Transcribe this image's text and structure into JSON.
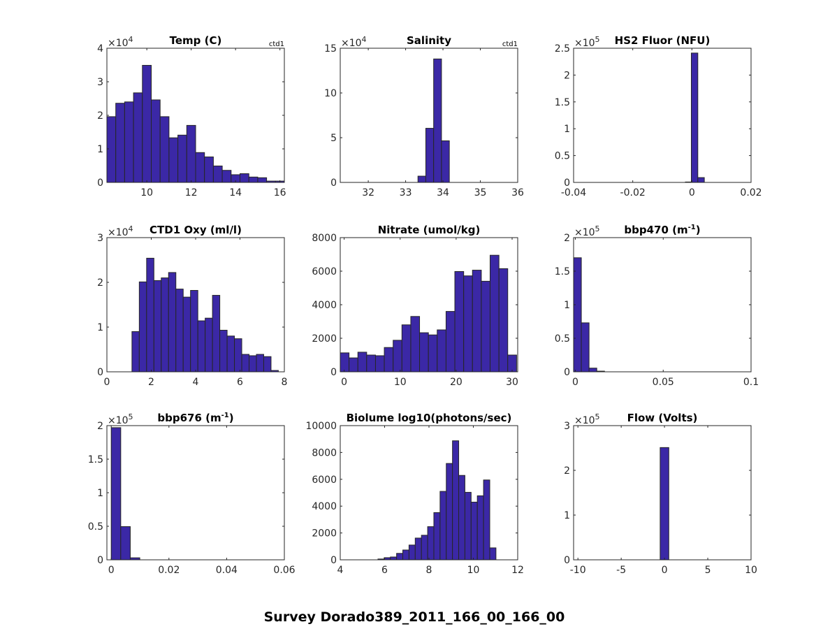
{
  "figure": {
    "suptitle": "Survey Dorado389_2011_166_00_166_00",
    "bar_color": "#3b28a6",
    "edge_color": "#262626"
  },
  "chart_data": [
    {
      "type": "bar",
      "title": "Temp (C)",
      "corner_label": "ctd1",
      "exponent_label": "×10",
      "exponent": "4",
      "xlim": [
        8.2,
        16.2
      ],
      "ylim": [
        0,
        40000
      ],
      "xticks": [
        10,
        12,
        14,
        16
      ],
      "xtick_labels": [
        "10",
        "12",
        "14",
        "16"
      ],
      "yticks": [
        0,
        10000,
        20000,
        30000,
        40000
      ],
      "ytick_labels": [
        "0",
        "1",
        "2",
        "3",
        "4"
      ],
      "bin_edges": [
        8.2,
        8.6,
        9.0,
        9.4,
        9.8,
        10.2,
        10.6,
        11.0,
        11.4,
        11.8,
        12.2,
        12.6,
        13.0,
        13.4,
        13.8,
        14.2,
        14.6,
        15.0,
        15.4,
        15.8,
        16.2
      ],
      "values": [
        19600,
        23600,
        24000,
        26700,
        34900,
        24600,
        19600,
        13300,
        14100,
        17000,
        8900,
        7600,
        4900,
        3600,
        2300,
        2600,
        1600,
        1400,
        400,
        400
      ]
    },
    {
      "type": "bar",
      "title": "Salinity",
      "corner_label": "ctd1",
      "exponent_label": "×10",
      "exponent": "4",
      "xlim": [
        31.25,
        36
      ],
      "ylim": [
        0,
        150000
      ],
      "xticks": [
        32,
        33,
        34,
        35,
        36
      ],
      "xtick_labels": [
        "32",
        "33",
        "34",
        "35",
        "36"
      ],
      "yticks": [
        0,
        50000,
        100000,
        150000
      ],
      "ytick_labels": [
        "0",
        "5",
        "10",
        "15"
      ],
      "bin_edges": [
        33.33,
        33.54,
        33.75,
        33.96,
        34.17
      ],
      "values": [
        7000,
        60500,
        138000,
        46500
      ]
    },
    {
      "type": "bar",
      "title": "HS2 Fluor (NFU)",
      "exponent_label": "×10",
      "exponent": "5",
      "xlim": [
        -0.04,
        0.02
      ],
      "ylim": [
        0,
        250000
      ],
      "xticks": [
        -0.04,
        -0.02,
        0,
        0.02
      ],
      "xtick_labels": [
        "-0.04",
        "-0.02",
        "0",
        "0.02"
      ],
      "yticks": [
        0,
        50000,
        100000,
        150000,
        200000,
        250000
      ],
      "ytick_labels": [
        "0",
        "0.5",
        "1",
        "1.5",
        "2",
        "2.5"
      ],
      "bin_edges": [
        -0.0022,
        -0.0002,
        0.002,
        0.0042
      ],
      "values": [
        800,
        241000,
        9000
      ]
    },
    {
      "type": "bar",
      "title": "CTD1 Oxy (ml/l)",
      "exponent_label": "×10",
      "exponent": "4",
      "xlim": [
        0,
        8
      ],
      "ylim": [
        0,
        30000
      ],
      "xticks": [
        0,
        2,
        4,
        6,
        8
      ],
      "xtick_labels": [
        "0",
        "2",
        "4",
        "6",
        "8"
      ],
      "yticks": [
        0,
        10000,
        20000,
        30000
      ],
      "ytick_labels": [
        "0",
        "1",
        "2",
        "3"
      ],
      "bin_edges": [
        1.13,
        1.46,
        1.79,
        2.12,
        2.45,
        2.78,
        3.11,
        3.44,
        3.77,
        4.1,
        4.43,
        4.76,
        5.09,
        5.42,
        5.75,
        6.08,
        6.41,
        6.74,
        7.07,
        7.4,
        7.73
      ],
      "values": [
        9000,
        20100,
        25400,
        20400,
        21000,
        22200,
        18500,
        16700,
        18200,
        11400,
        12000,
        17100,
        9300,
        8000,
        7400,
        3900,
        3600,
        3900,
        3400,
        300
      ]
    },
    {
      "type": "bar",
      "title": "Nitrate (umol/kg)",
      "xlim": [
        -0.7,
        31
      ],
      "ylim": [
        0,
        8000
      ],
      "xticks": [
        0,
        10,
        20,
        30
      ],
      "xtick_labels": [
        "0",
        "10",
        "20",
        "30"
      ],
      "yticks": [
        0,
        2000,
        4000,
        6000,
        8000
      ],
      "ytick_labels": [
        "0",
        "2000",
        "4000",
        "6000",
        "8000"
      ],
      "bin_edges": [
        -0.7,
        0.87,
        2.45,
        4.02,
        5.6,
        7.17,
        8.75,
        10.32,
        11.9,
        13.47,
        15.05,
        16.62,
        18.2,
        19.77,
        21.35,
        22.92,
        24.5,
        26.07,
        27.65,
        29.22,
        30.8
      ],
      "values": [
        1130,
        830,
        1170,
        1000,
        960,
        1450,
        1880,
        2800,
        3300,
        2330,
        2200,
        2500,
        3600,
        5980,
        5720,
        6060,
        5400,
        6950,
        6150,
        1000
      ]
    },
    {
      "type": "bar",
      "title": "bbp470 (m",
      "title_sup": "-1",
      "title_end": ")",
      "exponent_label": "×10",
      "exponent": "5",
      "xlim": [
        -0.001,
        0.1
      ],
      "ylim": [
        0,
        200000
      ],
      "xticks": [
        0,
        0.05,
        0.1
      ],
      "xtick_labels": [
        "0",
        "0.05",
        "0.1"
      ],
      "yticks": [
        0,
        50000,
        100000,
        150000,
        200000
      ],
      "ytick_labels": [
        "0",
        "0.5",
        "1",
        "1.5",
        "2"
      ],
      "bin_edges": [
        -0.001,
        0.0034,
        0.0078,
        0.0122,
        0.0166
      ],
      "values": [
        170000,
        73000,
        5500,
        1000
      ]
    },
    {
      "type": "bar",
      "title": "bbp676 (m",
      "title_sup": "-1",
      "title_end": ")",
      "exponent_label": "×10",
      "exponent": "5",
      "xlim": [
        -0.0015,
        0.06
      ],
      "ylim": [
        0,
        200000
      ],
      "xticks": [
        0,
        0.02,
        0.04,
        0.06
      ],
      "xtick_labels": [
        "0",
        "0.02",
        "0.04",
        "0.06"
      ],
      "yticks": [
        0,
        50000,
        100000,
        150000,
        200000
      ],
      "ytick_labels": [
        "0",
        "0.5",
        "1",
        "1.5",
        "2"
      ],
      "bin_edges": [
        0.0,
        0.0033,
        0.0066,
        0.0099
      ],
      "values": [
        197000,
        49500,
        3000
      ]
    },
    {
      "type": "bar",
      "title": "Biolume log10(photons/sec)",
      "xlim": [
        4,
        12
      ],
      "ylim": [
        0,
        10000
      ],
      "xticks": [
        4,
        6,
        8,
        10,
        12
      ],
      "xtick_labels": [
        "4",
        "6",
        "8",
        "10",
        "12"
      ],
      "yticks": [
        0,
        2000,
        4000,
        6000,
        8000,
        10000
      ],
      "ytick_labels": [
        "0",
        "2000",
        "4000",
        "6000",
        "8000",
        "10000"
      ],
      "bin_edges": [
        5.7,
        5.98,
        6.26,
        6.54,
        6.82,
        7.1,
        7.38,
        7.66,
        7.94,
        8.22,
        8.5,
        8.78,
        9.06,
        9.34,
        9.62,
        9.9,
        10.18,
        10.46,
        10.74,
        11.02
      ],
      "values": [
        60,
        160,
        210,
        480,
        730,
        1100,
        1620,
        1830,
        2470,
        3520,
        5100,
        7180,
        8870,
        6290,
        5030,
        4300,
        4770,
        5950,
        890
      ]
    },
    {
      "type": "bar",
      "title": "Flow (Volts)",
      "exponent_label": "×10",
      "exponent": "5",
      "xlim": [
        -10.5,
        10
      ],
      "ylim": [
        0,
        300000
      ],
      "xticks": [
        -10,
        -5,
        0,
        5,
        10
      ],
      "xtick_labels": [
        "-10",
        "-5",
        "0",
        "5",
        "10"
      ],
      "yticks": [
        0,
        100000,
        200000,
        300000
      ],
      "ytick_labels": [
        "0",
        "1",
        "2",
        "3"
      ],
      "bin_edges": [
        -0.5,
        0.5
      ],
      "values": [
        251000
      ]
    }
  ]
}
